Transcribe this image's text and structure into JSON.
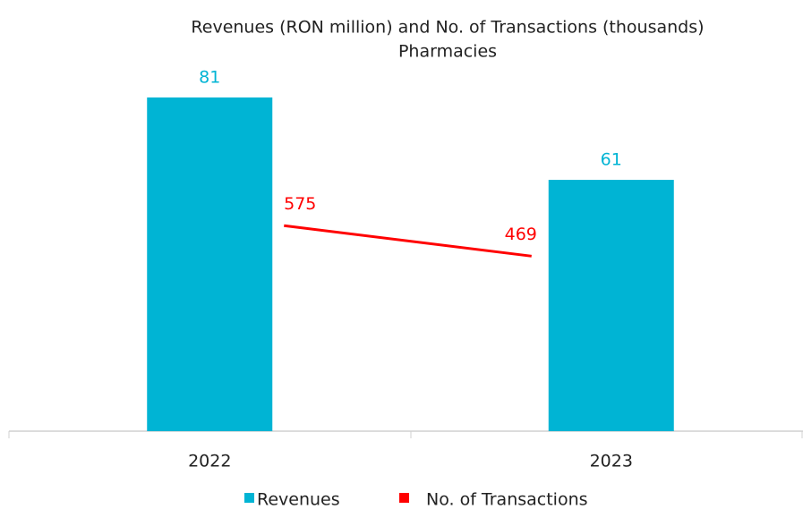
{
  "chart_data": {
    "type": "bar-line",
    "title": "Revenues (RON million) and No. of Transactions (thousands)",
    "subtitle": "Pharmacies",
    "categories": [
      "2022",
      "2023"
    ],
    "series": [
      {
        "name": "Revenues",
        "type": "bar",
        "color": "#00b4d4",
        "values": [
          81,
          61
        ]
      },
      {
        "name": "No. of Transactions",
        "type": "line",
        "axis": "y2",
        "color": "#ff0000",
        "values": [
          575,
          469
        ]
      }
    ],
    "ylim": [
      0,
      90
    ],
    "y2lim": [
      -140,
      1150
    ],
    "legend": "bottom"
  }
}
